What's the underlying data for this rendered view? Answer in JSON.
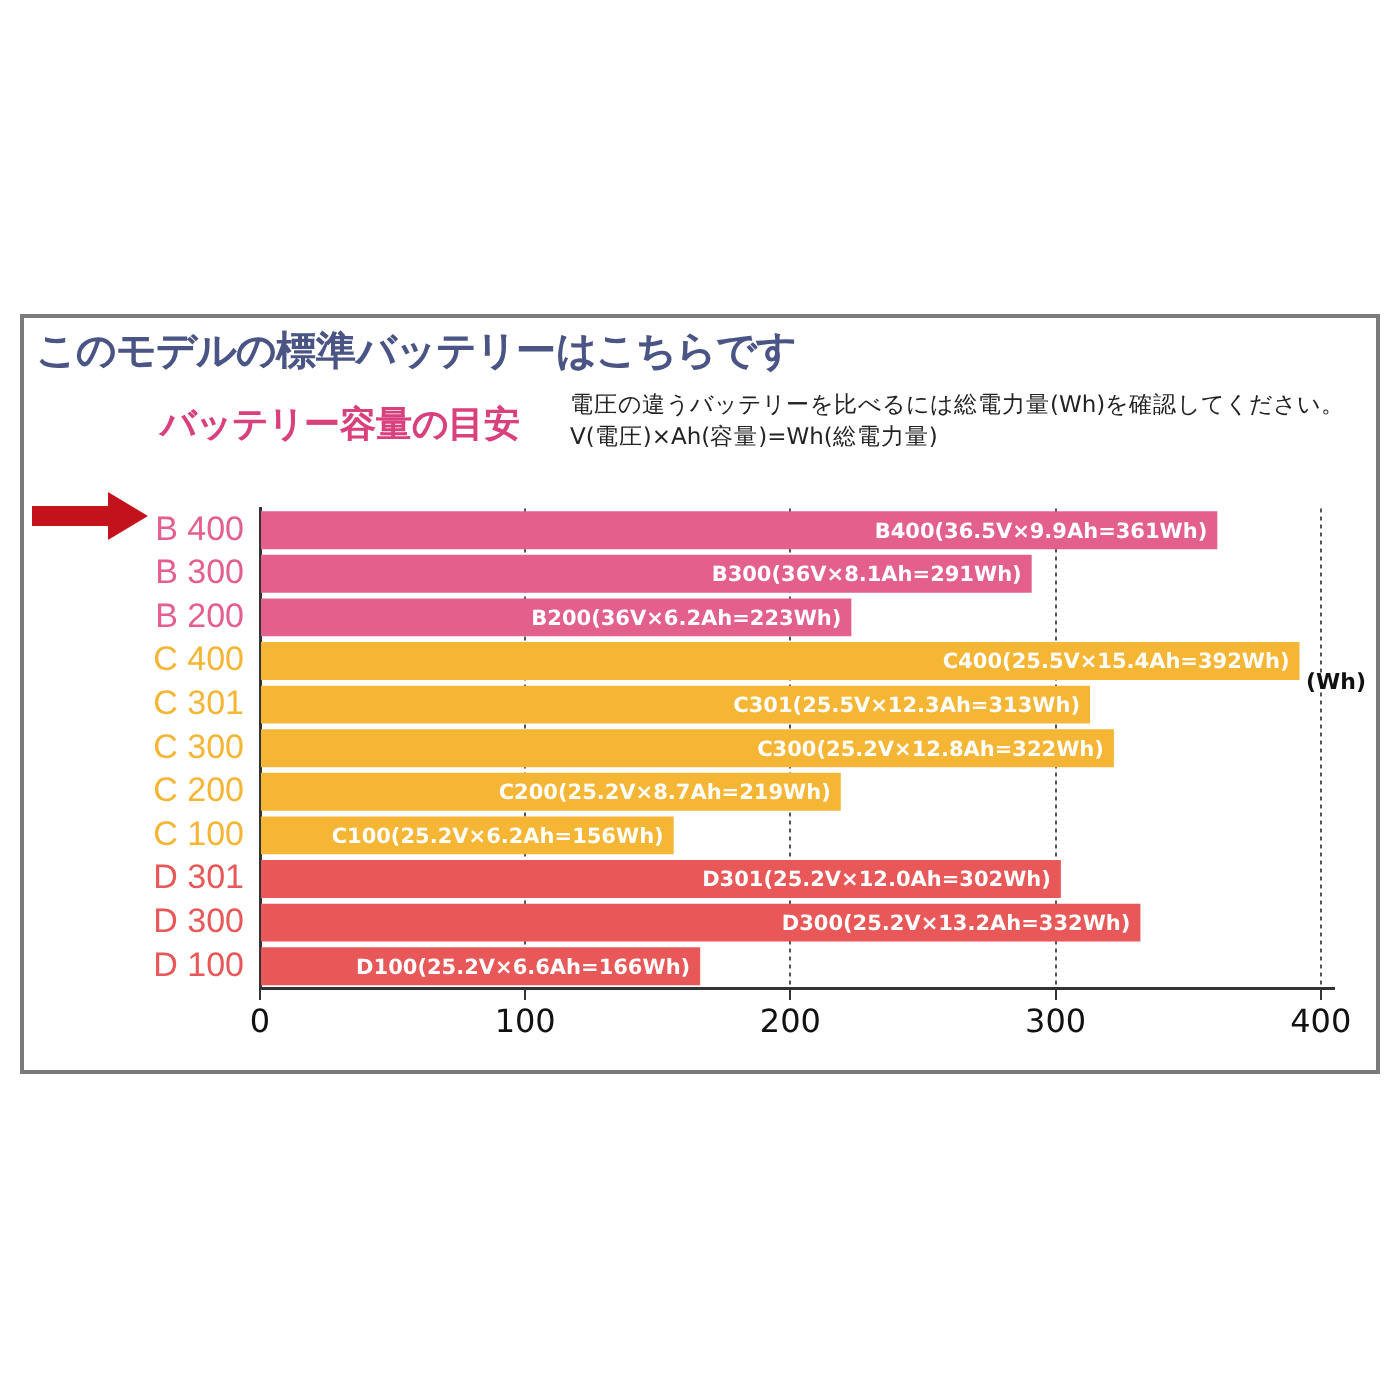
{
  "chart_data": {
    "type": "bar",
    "orientation": "horizontal",
    "title": "このモデルの標準バッテリーはこちらです",
    "subtitle": "バッテリー容量の目安",
    "xlabel": "(Wh)",
    "annotations": [
      "電圧の違うバッテリーを比べるには総電力量(Wh)を確認してください。",
      "V(電圧)×Ah(容量)=Wh(総電力量)"
    ],
    "categories": [
      "B 400",
      "B 300",
      "B 200",
      "C 400",
      "C 301",
      "C 300",
      "C 200",
      "C 100",
      "D 301",
      "D 300",
      "D 100"
    ],
    "values": [
      361,
      291,
      223,
      392,
      313,
      322,
      219,
      156,
      302,
      332,
      166
    ],
    "colors": [
      "#e3608c",
      "#e3608c",
      "#e3608c",
      "#f5b535",
      "#f5b535",
      "#f5b535",
      "#f5b535",
      "#f5b535",
      "#e85858",
      "#e85858",
      "#e85858"
    ],
    "value_labels": [
      "B400(36.5V×9.9Ah=361Wh)",
      "B300(36V×8.1Ah=291Wh)",
      "B200(36V×6.2Ah=223Wh)",
      "C400(25.5V×15.4Ah=392Wh)",
      "C301(25.5V×12.3Ah=313Wh)",
      "C300(25.2V×12.8Ah=322Wh)",
      "C200(25.2V×8.7Ah=219Wh)",
      "C100(25.2V×6.2Ah=156Wh)",
      "D301(25.2V×12.0Ah=302Wh)",
      "D300(25.2V×13.2Ah=332Wh)",
      "D100(25.2V×6.6Ah=166Wh)"
    ],
    "xlim": [
      0,
      405
    ],
    "xticks": [
      0,
      100,
      200,
      300,
      400
    ],
    "grid": "x"
  }
}
